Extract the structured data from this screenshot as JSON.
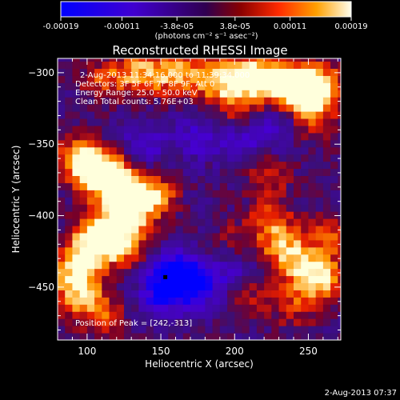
{
  "chart_data": {
    "type": "heatmap",
    "title": "Reconstructed RHESSI Image",
    "xlabel": "Heliocentric X (arcsec)",
    "ylabel": "Heliocentric Y (arcsec)",
    "xlim": [
      80,
      272
    ],
    "ylim": [
      -487,
      -290
    ],
    "xticks": [
      100,
      150,
      200,
      250
    ],
    "yticks": [
      -300,
      -350,
      -400,
      -450
    ],
    "colorbar": {
      "min": -0.00019,
      "max": 0.00019,
      "ticks": [
        "-0.00019",
        "-0.00011",
        "-3.8e-05",
        "3.8e-05",
        "0.00011",
        "0.00019"
      ],
      "unit_label": "(photons cm⁻² s⁻¹ asec⁻²)"
    },
    "info_lines": [
      "2-Aug-2013 11:34:16.000 to 11:39:34.000",
      "Detectors: 3F 5F 6F 7F 8F 9F, Att 0",
      "Energy Range: 25.0 - 50.0 keV",
      "Clean    Total counts: 5.76E+03"
    ],
    "peak_text": "Position of Peak = [242,-313]",
    "peak_position": [
      242,
      -313
    ],
    "min_marker": [
      153,
      -443
    ],
    "hot_regions": [
      {
        "x": 120,
        "y": -375,
        "level": 1.0
      },
      {
        "x": 130,
        "y": -395,
        "level": 0.9
      },
      {
        "x": 105,
        "y": -370,
        "level": 0.85
      },
      {
        "x": 95,
        "y": -360,
        "level": 0.8
      },
      {
        "x": 145,
        "y": -385,
        "level": 0.8
      },
      {
        "x": 110,
        "y": -410,
        "level": 0.9
      },
      {
        "x": 125,
        "y": -420,
        "level": 0.8
      },
      {
        "x": 100,
        "y": -425,
        "level": 0.75
      },
      {
        "x": 90,
        "y": -440,
        "level": 0.6
      },
      {
        "x": 95,
        "y": -455,
        "level": 0.7
      },
      {
        "x": 110,
        "y": -470,
        "level": 0.5
      },
      {
        "x": 210,
        "y": -302,
        "level": 0.9
      },
      {
        "x": 230,
        "y": -305,
        "level": 0.95
      },
      {
        "x": 245,
        "y": -313,
        "level": 1.0
      },
      {
        "x": 260,
        "y": -310,
        "level": 0.85
      },
      {
        "x": 185,
        "y": -303,
        "level": 0.8
      },
      {
        "x": 160,
        "y": -300,
        "level": 0.8
      },
      {
        "x": 135,
        "y": -300,
        "level": 0.75
      },
      {
        "x": 110,
        "y": -305,
        "level": 0.5
      },
      {
        "x": 200,
        "y": -320,
        "level": 0.5
      },
      {
        "x": 255,
        "y": -335,
        "level": 0.45
      },
      {
        "x": 225,
        "y": -405,
        "level": 0.6
      },
      {
        "x": 235,
        "y": -425,
        "level": 0.75
      },
      {
        "x": 248,
        "y": -440,
        "level": 0.6
      },
      {
        "x": 265,
        "y": -415,
        "level": 0.6
      },
      {
        "x": 260,
        "y": -445,
        "level": 0.65
      },
      {
        "x": 240,
        "y": -465,
        "level": 0.4
      },
      {
        "x": 222,
        "y": -372,
        "level": 0.5
      },
      {
        "x": 210,
        "y": -455,
        "level": 0.4
      },
      {
        "x": 200,
        "y": -418,
        "level": 0.3
      }
    ],
    "cold_regions": [
      {
        "x": 160,
        "y": -440,
        "level": -1.0
      },
      {
        "x": 175,
        "y": -448,
        "level": -0.8
      },
      {
        "x": 150,
        "y": -455,
        "level": -0.7
      },
      {
        "x": 140,
        "y": -350,
        "level": -0.5
      },
      {
        "x": 175,
        "y": -345,
        "level": -0.45
      },
      {
        "x": 205,
        "y": -350,
        "level": -0.4
      },
      {
        "x": 230,
        "y": -340,
        "level": -0.4
      },
      {
        "x": 200,
        "y": -440,
        "level": -0.4
      }
    ]
  },
  "footer": {
    "timestamp": "2-Aug-2013 07:37"
  },
  "colors": {
    "background": "#000000",
    "axis": "#ffffff",
    "plot_base": "#3a0f78"
  }
}
